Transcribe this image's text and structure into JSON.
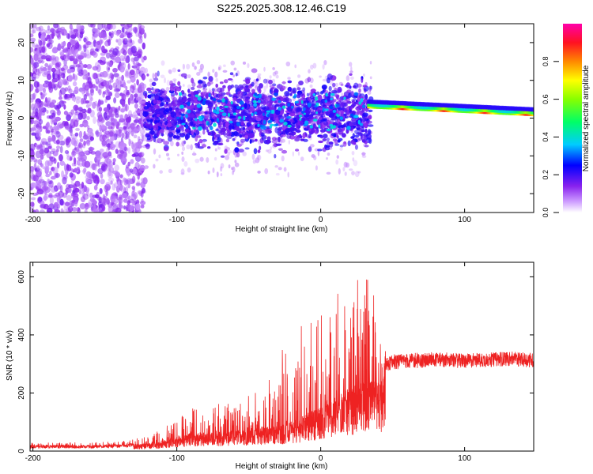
{
  "title": "S225.2025.308.12.46.C19",
  "colors": {
    "snr_line": "#ee2222",
    "spectrum_low": "#8822ee",
    "spectrum_band": "#ff3344",
    "frame": "#000000"
  },
  "chart_data": [
    {
      "type": "heatmap",
      "name": "spectrogram",
      "xlabel": "Height of straight line (km)",
      "ylabel": "Frequency (Hz)",
      "xlim": [
        -202,
        148
      ],
      "ylim": [
        -25,
        25
      ],
      "xticks": [
        -200,
        -100,
        0,
        100
      ],
      "xtick_labels": [
        "-200",
        "-100",
        "0",
        "100"
      ],
      "yticks": [
        -20,
        -10,
        0,
        10,
        20
      ],
      "ytick_labels": [
        "-20",
        "-10",
        "0",
        "10",
        "20"
      ],
      "description_regions": [
        {
          "x_range": [
            -202,
            -120
          ],
          "freq_range": [
            -25,
            25
          ],
          "amplitude": 0.1,
          "pattern": "scattered noise"
        },
        {
          "x_range": [
            -120,
            35
          ],
          "freq_range": [
            -10,
            10
          ],
          "amplitude": 0.2,
          "pattern": "broadband blobs"
        },
        {
          "x_range": [
            35,
            148
          ],
          "freq_center": [
            3,
            1
          ],
          "amplitude": 0.9,
          "pattern": "narrow strong band"
        }
      ],
      "colorbar": {
        "label": "Normalized spectral amplitude",
        "range": [
          0,
          1
        ],
        "ticks": [
          0.0,
          0.2,
          0.4,
          0.6,
          0.8
        ],
        "tick_labels": [
          "0.0",
          "0.2",
          "0.4",
          "0.6",
          "0.8"
        ],
        "stops": [
          "#ffffff",
          "#aa22ff",
          "#0000ff",
          "#00ffff",
          "#00ff00",
          "#ffff00",
          "#ff8800",
          "#ff0000",
          "#ff00aa"
        ]
      }
    },
    {
      "type": "line",
      "name": "snr",
      "xlabel": "Height of straight line (km)",
      "ylabel": "SNR (10 * v/v)",
      "xlim": [
        -202,
        148
      ],
      "ylim": [
        0,
        650
      ],
      "xticks": [
        -200,
        -100,
        0,
        100
      ],
      "xtick_labels": [
        "-200",
        "-100",
        "0",
        "100"
      ],
      "yticks": [
        0,
        200,
        400,
        600
      ],
      "ytick_labels": [
        "0",
        "200",
        "400",
        "600"
      ],
      "series": [
        {
          "name": "SNR",
          "x": [
            -202,
            -180,
            -160,
            -140,
            -120,
            -110,
            -100,
            -90,
            -80,
            -70,
            -60,
            -50,
            -40,
            -30,
            -25,
            -20,
            -15,
            -10,
            -5,
            0,
            5,
            10,
            15,
            20,
            25,
            30,
            35,
            40,
            43,
            45,
            50,
            60,
            70,
            80,
            90,
            100,
            110,
            120,
            130,
            140,
            148
          ],
          "baseline": [
            15,
            15,
            15,
            18,
            22,
            30,
            40,
            50,
            55,
            55,
            60,
            65,
            70,
            75,
            80,
            85,
            95,
            110,
            120,
            130,
            150,
            160,
            170,
            180,
            190,
            200,
            200,
            200,
            200,
            300,
            305,
            310,
            310,
            315,
            312,
            310,
            312,
            315,
            318,
            315,
            312
          ],
          "peaks": [
            30,
            30,
            30,
            35,
            50,
            80,
            110,
            150,
            140,
            170,
            190,
            200,
            220,
            300,
            450,
            250,
            420,
            480,
            460,
            470,
            520,
            560,
            580,
            600,
            620,
            630,
            600,
            450,
            380,
            330,
            335,
            340,
            340,
            345,
            340,
            335,
            340,
            340,
            345,
            340,
            340
          ]
        }
      ]
    }
  ]
}
